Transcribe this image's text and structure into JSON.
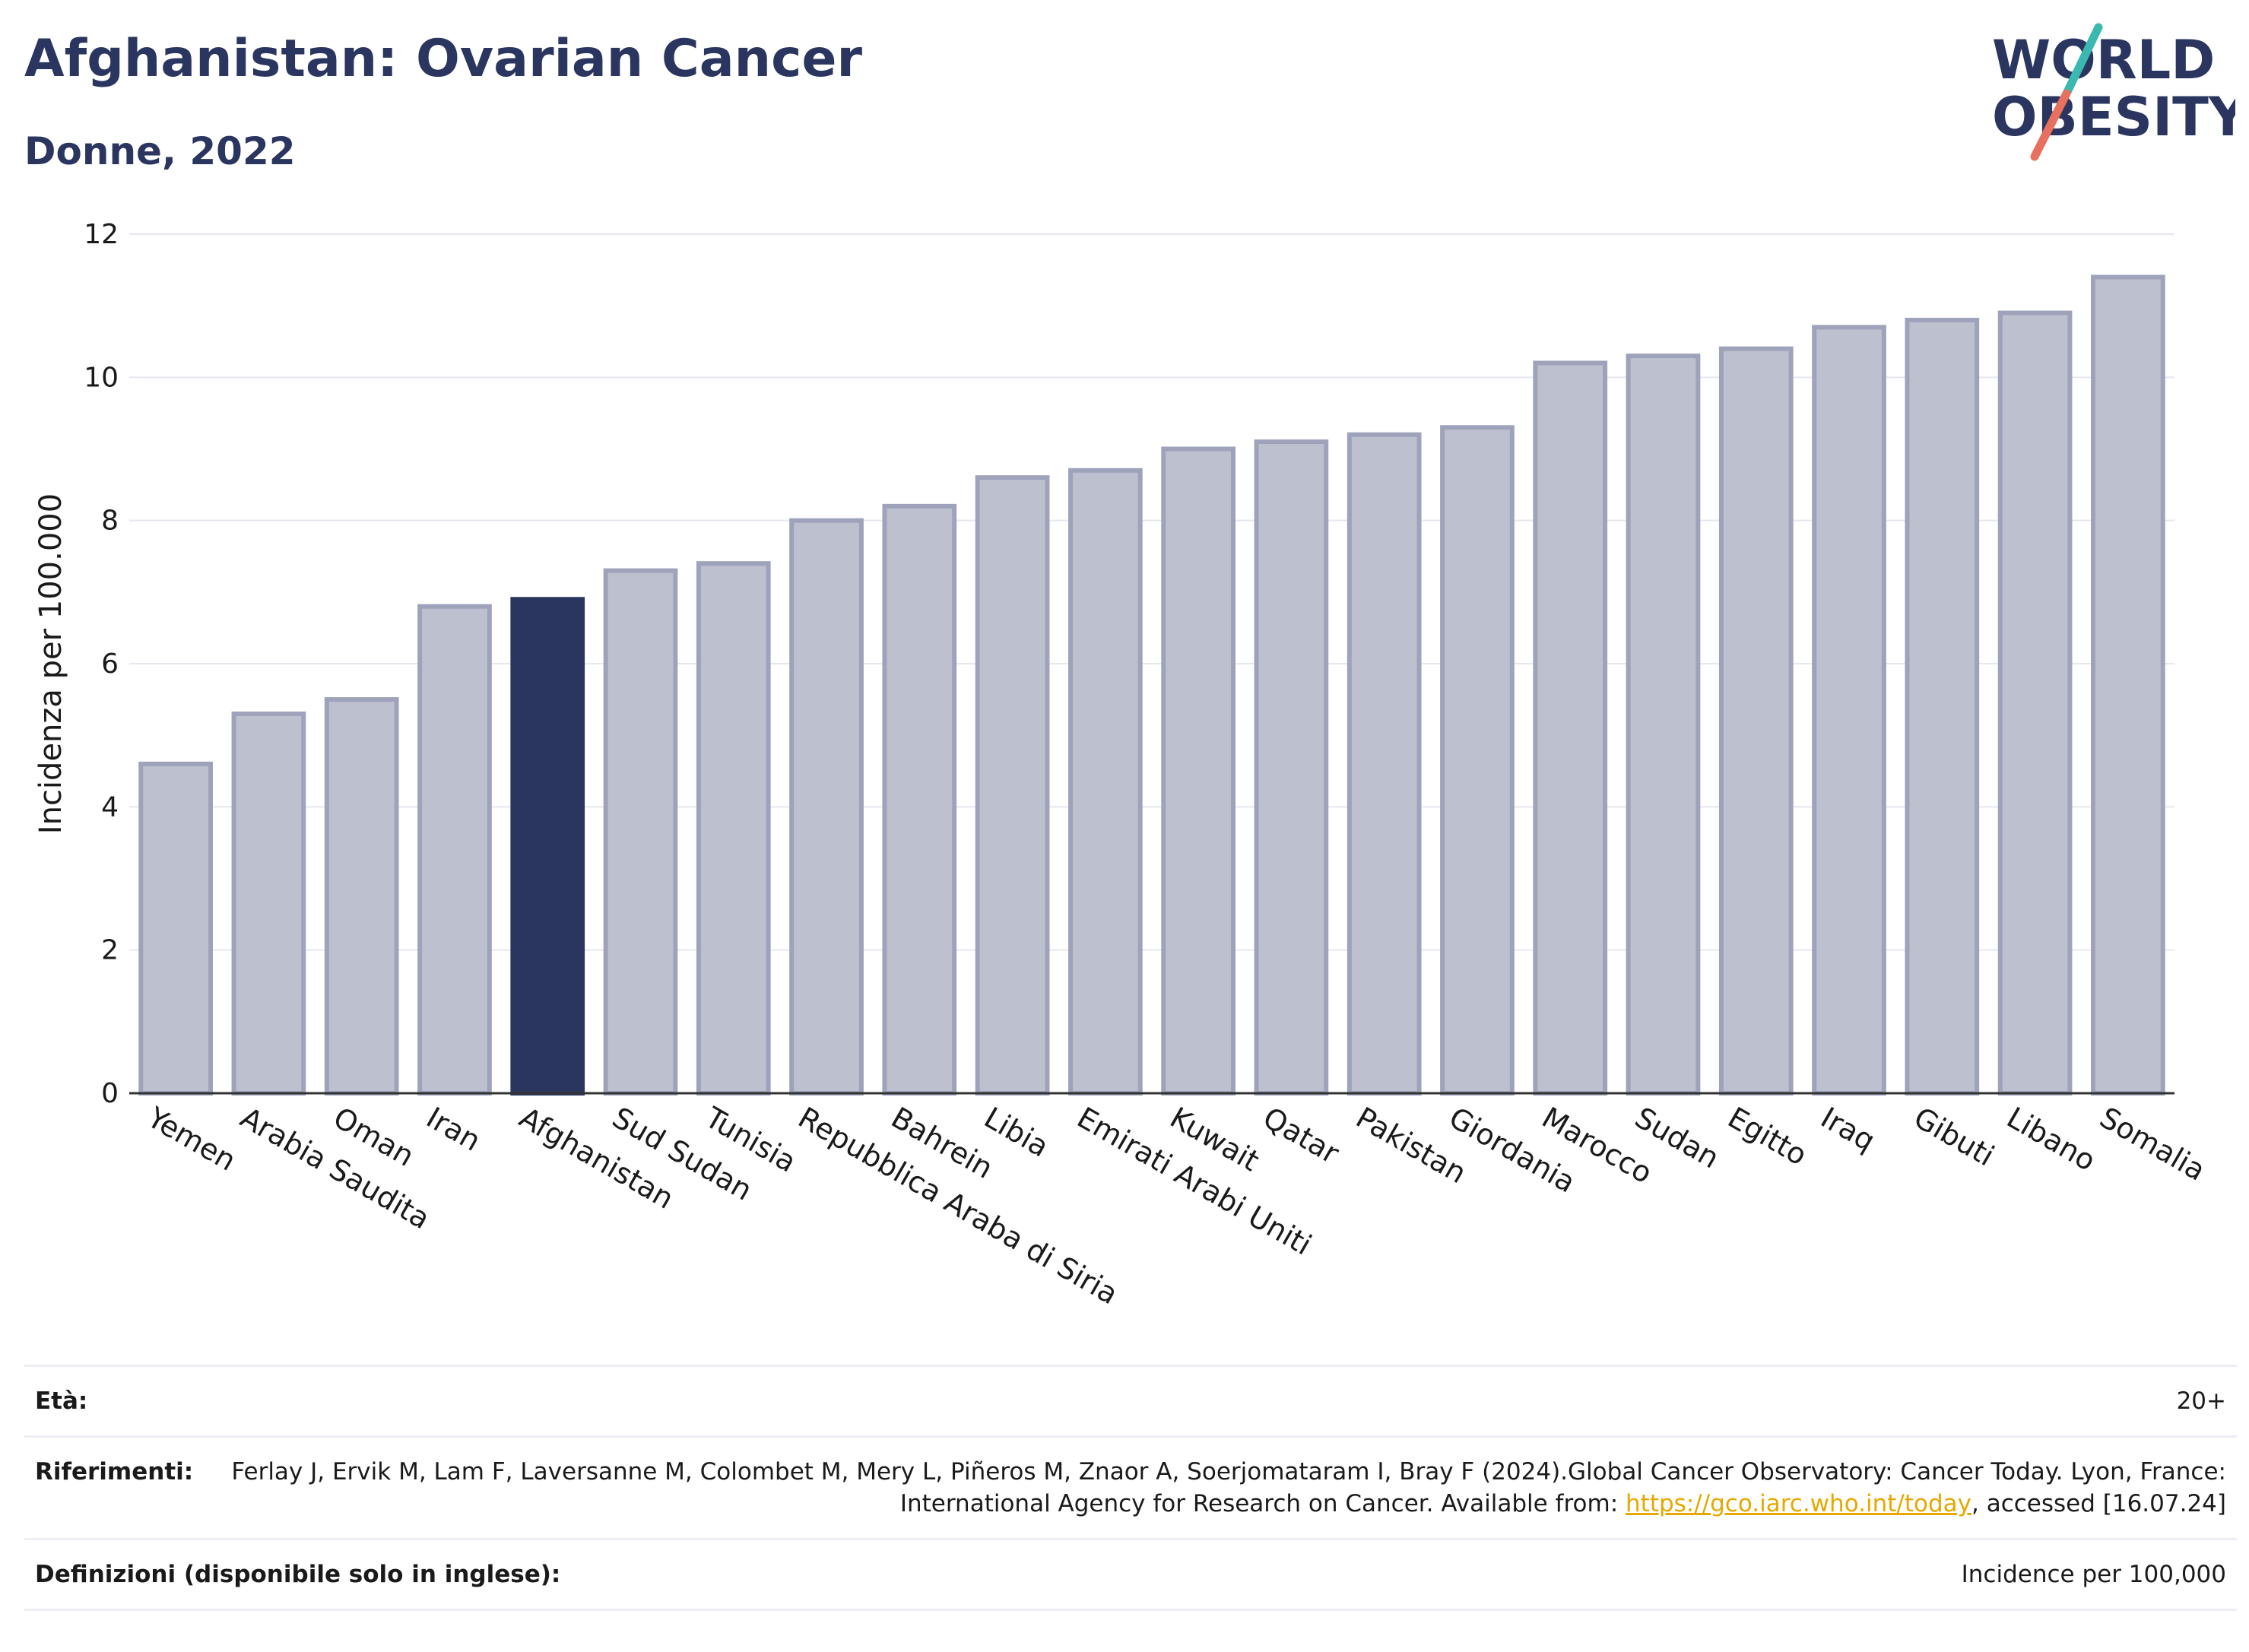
{
  "header": {
    "title": "Afghanistan: Ovarian Cancer",
    "subtitle": "Donne, 2022"
  },
  "logo": {
    "line1": "WORLD",
    "line2": "OBESITY"
  },
  "colors": {
    "highlight": "#2a365f",
    "bar_fill": "#bcc0cf",
    "bar_stroke": "#9ea3bb",
    "grid": "#e6e8ef",
    "logo_teal": "#3bb8b0",
    "logo_coral": "#e8705f"
  },
  "chart_data": {
    "type": "bar",
    "ylabel": "Incidenza per 100.000",
    "ylim": [
      0,
      12
    ],
    "yticks": [
      0,
      2,
      4,
      6,
      8,
      10,
      12
    ],
    "grid": true,
    "highlight": "Afghanistan",
    "categories": [
      "Yemen",
      "Arabia Saudita",
      "Oman",
      "Iran",
      "Afghanistan",
      "Sud Sudan",
      "Tunisia",
      "Repubblica Araba di Siria",
      "Bahrein",
      "Libia",
      "Emirati Arabi Uniti",
      "Kuwait",
      "Qatar",
      "Pakistan",
      "Giordania",
      "Marocco",
      "Sudan",
      "Egitto",
      "Iraq",
      "Gibuti",
      "Libano",
      "Somalia"
    ],
    "values": [
      4.6,
      5.3,
      5.5,
      6.8,
      6.9,
      7.3,
      7.4,
      8.0,
      8.2,
      8.6,
      8.7,
      9.0,
      9.1,
      9.2,
      9.3,
      10.2,
      10.3,
      10.4,
      10.7,
      10.8,
      10.9,
      11.4
    ]
  },
  "meta": {
    "age_label": "Età:",
    "age_value": "20+",
    "refs_label": "Riferimenti:",
    "refs_text": "Ferlay J, Ervik M, Lam F, Laversanne M, Colombet M, Mery L, Piñeros M, Znaor A, Soerjomataram I, Bray F (2024).Global Cancer Observatory: Cancer Today. Lyon, France: International Agency for Research on Cancer. Available from: ",
    "refs_link": "https://gco.iarc.who.int/today",
    "refs_after": ", accessed [16.07.24]",
    "def_label": "Definizioni (disponibile solo in inglese):",
    "def_value": "Incidence per 100,000"
  }
}
